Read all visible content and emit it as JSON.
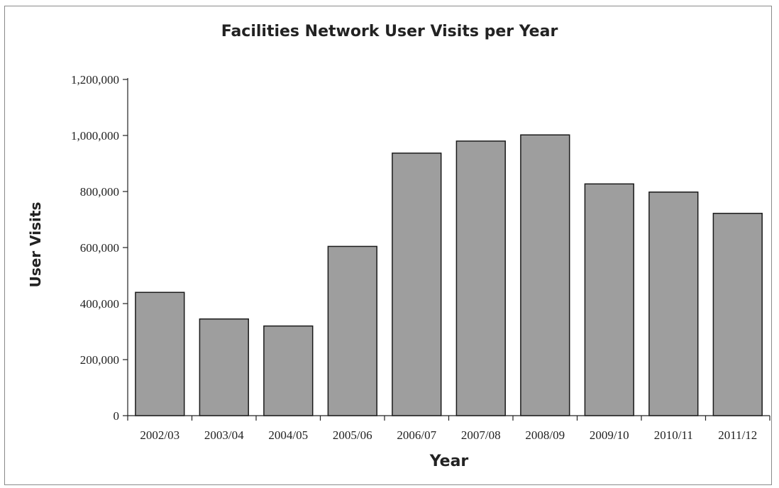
{
  "chart_data": {
    "type": "bar",
    "title": "Facilities Network User Visits per Year",
    "xlabel": "Year",
    "ylabel": "User Visits",
    "categories": [
      "2002/03",
      "2003/04",
      "2004/05",
      "2005/06",
      "2006/07",
      "2007/08",
      "2008/09",
      "2009/10",
      "2010/11",
      "2011/12"
    ],
    "values": [
      440000,
      345000,
      320000,
      604000,
      937000,
      980000,
      1002000,
      827000,
      798000,
      722000
    ],
    "ylim": [
      0,
      1200000
    ],
    "yticks": [
      0,
      200000,
      400000,
      600000,
      800000,
      1000000,
      1200000
    ],
    "ytick_labels": [
      "0",
      "200,000",
      "400,000",
      "600,000",
      "800,000",
      "1,000,000",
      "1,200,000"
    ],
    "grid": false,
    "bar_color": "#9e9e9e",
    "bar_edge_color": "#1a1a1a"
  }
}
